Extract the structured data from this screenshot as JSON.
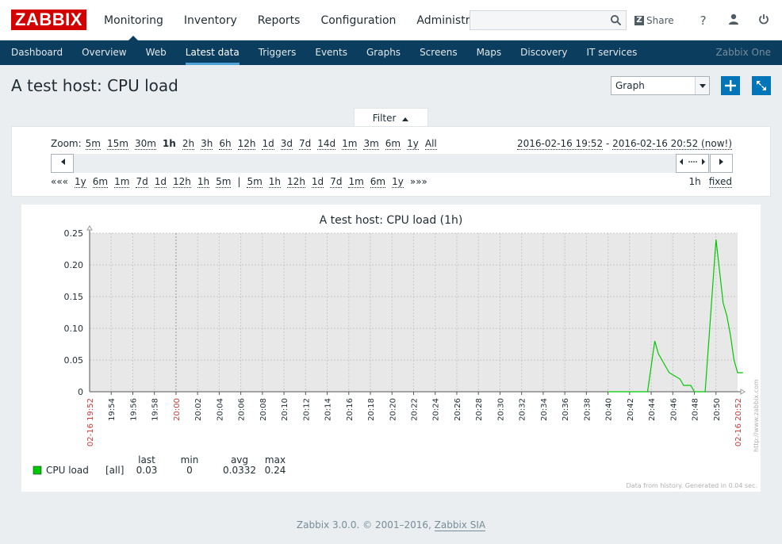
{
  "header": {
    "logo": "ZABBIX",
    "nav": [
      {
        "label": "Monitoring"
      },
      {
        "label": "Inventory"
      },
      {
        "label": "Reports"
      },
      {
        "label": "Configuration"
      },
      {
        "label": "Administration"
      }
    ],
    "search_value": "",
    "share_label": "Share"
  },
  "subnav": {
    "items": [
      {
        "label": "Dashboard"
      },
      {
        "label": "Overview"
      },
      {
        "label": "Web"
      },
      {
        "label": "Latest data"
      },
      {
        "label": "Triggers"
      },
      {
        "label": "Events"
      },
      {
        "label": "Graphs"
      },
      {
        "label": "Screens"
      },
      {
        "label": "Maps"
      },
      {
        "label": "Discovery"
      },
      {
        "label": "IT services"
      }
    ],
    "right_label": "Zabbix One"
  },
  "page": {
    "title": "A test host: CPU load",
    "view_select": "Graph"
  },
  "filter": {
    "tab_label": "Filter",
    "zoom_label": "Zoom:",
    "zoom_options": [
      "5m",
      "15m",
      "30m",
      "1h",
      "2h",
      "3h",
      "6h",
      "12h",
      "1d",
      "3d",
      "7d",
      "14d",
      "1m",
      "3m",
      "6m",
      "1y",
      "All"
    ],
    "zoom_selected": "1h",
    "date_from": "2016-02-16 19:52",
    "date_sep": " - ",
    "date_to": "2016-02-16 20:52 (now!)",
    "back_links": [
      "«««",
      "1y",
      "6m",
      "1m",
      "7d",
      "1d",
      "12h",
      "1h",
      "5m"
    ],
    "separator": "|",
    "fwd_links": [
      "5m",
      "1h",
      "12h",
      "1d",
      "7d",
      "1m",
      "6m",
      "1y",
      "»»»"
    ],
    "period_value": "1h",
    "period_mode": "fixed"
  },
  "chart_data": {
    "type": "line",
    "title": "A test host: CPU load (1h)",
    "ylim": [
      0,
      0.25
    ],
    "yticks": [
      "0",
      "0.05",
      "0.10",
      "0.15",
      "0.20",
      "0.25"
    ],
    "xticks": [
      "19:54",
      "19:56",
      "19:58",
      "20:00",
      "20:02",
      "20:04",
      "20:06",
      "20:08",
      "20:10",
      "20:12",
      "20:14",
      "20:16",
      "20:18",
      "20:20",
      "20:22",
      "20:24",
      "20:26",
      "20:28",
      "20:30",
      "20:32",
      "20:34",
      "20:36",
      "20:38",
      "20:40",
      "20:42",
      "20:44",
      "20:46",
      "20:48",
      "20:50"
    ],
    "x_start_label": "02-16 19:52",
    "x_end_label": "02-16 20:52",
    "watermark": "http://www.zabbix.com",
    "series": [
      {
        "name": "CPU load",
        "color": "#00c800",
        "points": [
          {
            "x": "20:40",
            "y": 0
          },
          {
            "x": "20:43:40",
            "y": 0
          },
          {
            "x": "20:44:20",
            "y": 0.08
          },
          {
            "x": "20:44:40",
            "y": 0.06
          },
          {
            "x": "20:45",
            "y": 0.05
          },
          {
            "x": "20:45:20",
            "y": 0.04
          },
          {
            "x": "20:45:40",
            "y": 0.03
          },
          {
            "x": "20:46:40",
            "y": 0.02
          },
          {
            "x": "20:47",
            "y": 0.01
          },
          {
            "x": "20:47:40",
            "y": 0.01
          },
          {
            "x": "20:48",
            "y": 0
          },
          {
            "x": "20:49",
            "y": 0
          },
          {
            "x": "20:49:20",
            "y": 0.08
          },
          {
            "x": "20:50",
            "y": 0.24
          },
          {
            "x": "20:50:40",
            "y": 0.14
          },
          {
            "x": "20:51",
            "y": 0.12
          },
          {
            "x": "20:51:20",
            "y": 0.09
          },
          {
            "x": "20:51:40",
            "y": 0.05
          },
          {
            "x": "20:52",
            "y": 0.03
          },
          {
            "x": "20:52:30",
            "y": 0.03
          }
        ]
      }
    ],
    "legend": {
      "headers": [
        "last",
        "min",
        "avg",
        "max"
      ],
      "rows": [
        {
          "name": "CPU load",
          "func": "[all]",
          "last": "0.03",
          "min": "0",
          "avg": "0.0332",
          "max": "0.24"
        }
      ]
    },
    "footnote": "Data from history. Generated in 0.04 sec."
  },
  "footer": {
    "text": "Zabbix 3.0.0. © 2001–2016, ",
    "company": "Zabbix SIA"
  }
}
